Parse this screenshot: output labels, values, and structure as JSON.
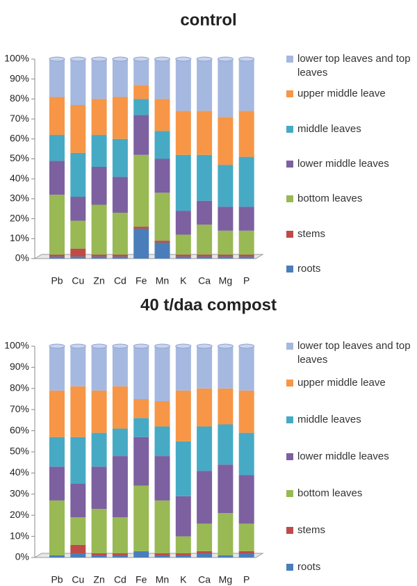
{
  "chart_data": [
    {
      "type": "bar",
      "stacked": true,
      "title": "control",
      "categories": [
        "Pb",
        "Cu",
        "Zn",
        "Cd",
        "Fe",
        "Mn",
        "K",
        "Ca",
        "Mg",
        "P"
      ],
      "ylim": [
        0,
        100
      ],
      "yticks": [
        {
          "value": 0,
          "label": "0%"
        },
        {
          "value": 10,
          "label": "10%"
        },
        {
          "value": 20,
          "label": "20%"
        },
        {
          "value": 30,
          "label": "30%"
        },
        {
          "value": 40,
          "label": "40%"
        },
        {
          "value": 50,
          "label": "50%"
        },
        {
          "value": 60,
          "label": "60%"
        },
        {
          "value": 70,
          "label": "70%"
        },
        {
          "value": 80,
          "label": "80%"
        },
        {
          "value": 90,
          "label": "90%"
        },
        {
          "value": 100,
          "label": "100%"
        }
      ],
      "series": [
        {
          "name": "roots",
          "color": "#4a7ebb",
          "values": [
            1,
            1,
            1,
            1,
            15,
            8,
            1,
            1,
            1,
            1
          ]
        },
        {
          "name": "stems",
          "color": "#be4b48",
          "values": [
            1,
            4,
            1,
            1,
            1,
            1,
            1,
            1,
            1,
            1
          ]
        },
        {
          "name": "bottom leaves",
          "color": "#98b954",
          "values": [
            30,
            14,
            25,
            21,
            36,
            24,
            10,
            15,
            12,
            12
          ]
        },
        {
          "name": "lower middle leaves",
          "color": "#7d60a0",
          "values": [
            17,
            12,
            19,
            18,
            20,
            17,
            12,
            12,
            12,
            12
          ]
        },
        {
          "name": "middle leaves",
          "color": "#46aac5",
          "values": [
            13,
            22,
            16,
            19,
            8,
            14,
            28,
            23,
            21,
            25
          ]
        },
        {
          "name": "upper middle leave",
          "color": "#f79646",
          "values": [
            19,
            24,
            18,
            21,
            7,
            16,
            22,
            22,
            24,
            23
          ]
        },
        {
          "name": "lower top leaves and top leaves",
          "color": "#a5b8e0",
          "values": [
            19,
            23,
            20,
            19,
            13,
            20,
            26,
            26,
            29,
            26
          ]
        }
      ]
    },
    {
      "type": "bar",
      "stacked": true,
      "title": "40 t/daa compost",
      "categories": [
        "Pb",
        "Cu",
        "Zn",
        "Cd",
        "Fe",
        "Mn",
        "K",
        "Ca",
        "Mg",
        "P"
      ],
      "ylim": [
        0,
        100
      ],
      "yticks": [
        {
          "value": 0,
          "label": "0%"
        },
        {
          "value": 10,
          "label": "10%"
        },
        {
          "value": 20,
          "label": "20%"
        },
        {
          "value": 30,
          "label": "30%"
        },
        {
          "value": 40,
          "label": "40%"
        },
        {
          "value": 50,
          "label": "50%"
        },
        {
          "value": 60,
          "label": "60%"
        },
        {
          "value": 70,
          "label": "70%"
        },
        {
          "value": 80,
          "label": "80%"
        },
        {
          "value": 90,
          "label": "90%"
        },
        {
          "value": 100,
          "label": "100%"
        }
      ],
      "series": [
        {
          "name": "roots",
          "color": "#4a7ebb",
          "values": [
            1,
            2,
            1,
            1,
            3,
            1,
            1,
            2,
            1,
            2
          ]
        },
        {
          "name": "stems",
          "color": "#be4b48",
          "values": [
            0,
            4,
            1,
            1,
            0,
            1,
            1,
            1,
            0,
            1
          ]
        },
        {
          "name": "bottom leaves",
          "color": "#98b954",
          "values": [
            26,
            13,
            21,
            17,
            31,
            25,
            8,
            13,
            20,
            13
          ]
        },
        {
          "name": "lower middle leaves",
          "color": "#7d60a0",
          "values": [
            16,
            16,
            20,
            29,
            23,
            21,
            19,
            25,
            23,
            23
          ]
        },
        {
          "name": "middle leaves",
          "color": "#46aac5",
          "values": [
            14,
            22,
            16,
            13,
            9,
            14,
            26,
            21,
            19,
            20
          ]
        },
        {
          "name": "upper middle leave",
          "color": "#f79646",
          "values": [
            22,
            24,
            20,
            20,
            9,
            12,
            24,
            18,
            17,
            20
          ]
        },
        {
          "name": "lower top leaves and top leaves",
          "color": "#a5b8e0",
          "values": [
            21,
            19,
            21,
            19,
            25,
            26,
            21,
            20,
            20,
            21
          ]
        }
      ]
    }
  ]
}
